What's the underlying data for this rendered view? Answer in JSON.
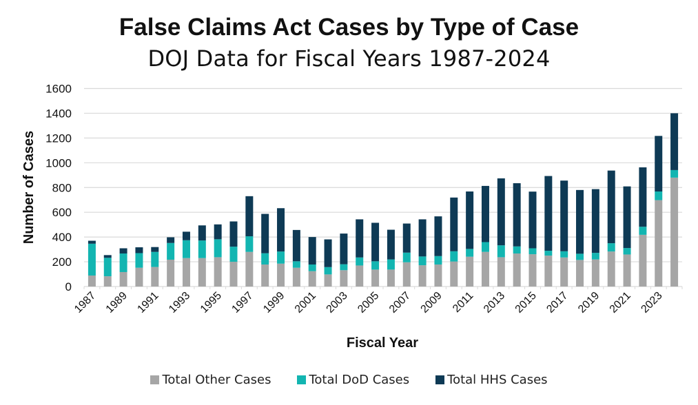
{
  "chart_data": {
    "type": "bar",
    "stacked": true,
    "title": "False Claims Act Cases by Type of Case",
    "subtitle": "DOJ Data for Fiscal Years 1987-2024",
    "xlabel": "Fiscal Year",
    "ylabel": "Number of Cases",
    "ylim": [
      0,
      1600
    ],
    "yticks": [
      0,
      200,
      400,
      600,
      800,
      1000,
      1200,
      1400,
      1600
    ],
    "grid": true,
    "legend_position": "bottom",
    "categories": [
      1987,
      1988,
      1989,
      1990,
      1991,
      1992,
      1993,
      1994,
      1995,
      1996,
      1997,
      1998,
      1999,
      2000,
      2001,
      2002,
      2003,
      2004,
      2005,
      2006,
      2007,
      2008,
      2009,
      2010,
      2011,
      2012,
      2013,
      2014,
      2015,
      2016,
      2017,
      2018,
      2019,
      2020,
      2021,
      2022,
      2023,
      2024
    ],
    "xtick_labels": [
      "1987",
      "1989",
      "1991",
      "1993",
      "1995",
      "1997",
      "1999",
      "2001",
      "2003",
      "2005",
      "2007",
      "2009",
      "2011",
      "2013",
      "2015",
      "2017",
      "2019",
      "2021",
      "2023"
    ],
    "series": [
      {
        "name": "Total Other Cases",
        "color": "#a6a6a6",
        "values": [
          89,
          83,
          117,
          152,
          158,
          217,
          230,
          230,
          237,
          200,
          280,
          178,
          185,
          152,
          124,
          98,
          132,
          170,
          137,
          137,
          196,
          172,
          178,
          202,
          241,
          280,
          237,
          267,
          261,
          250,
          235,
          215,
          219,
          283,
          259,
          418,
          698,
          880
        ]
      },
      {
        "name": "Total DoD Cases",
        "color": "#13b5b1",
        "values": [
          257,
          149,
          150,
          118,
          122,
          135,
          144,
          142,
          145,
          122,
          126,
          91,
          98,
          52,
          54,
          59,
          48,
          65,
          67,
          82,
          78,
          71,
          68,
          83,
          63,
          79,
          96,
          57,
          48,
          39,
          50,
          50,
          53,
          67,
          52,
          65,
          70,
          61
        ]
      },
      {
        "name": "Total HHS Cases",
        "color": "#0e3a55",
        "values": [
          24,
          22,
          42,
          47,
          39,
          46,
          69,
          122,
          120,
          204,
          324,
          318,
          350,
          253,
          222,
          224,
          248,
          308,
          311,
          240,
          235,
          300,
          321,
          434,
          464,
          454,
          541,
          511,
          458,
          604,
          571,
          515,
          515,
          587,
          498,
          480,
          449,
          459
        ]
      }
    ]
  }
}
